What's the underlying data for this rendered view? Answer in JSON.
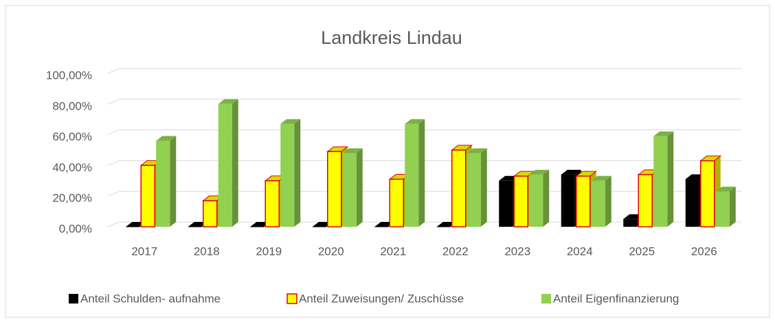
{
  "chart_data": {
    "type": "bar",
    "title": "Landkreis Lindau",
    "categories": [
      "2017",
      "2018",
      "2019",
      "2020",
      "2021",
      "2022",
      "2023",
      "2024",
      "2025",
      "2026"
    ],
    "series": [
      {
        "name": "Anteil Schulden- aufnahme",
        "color": "#000000",
        "values": [
          0,
          0,
          0,
          0,
          0,
          0,
          30,
          34,
          5,
          31
        ]
      },
      {
        "name": "Anteil Zuweisungen/ Zuschüsse",
        "color": "#ffff00",
        "edgecolor": "#e00000",
        "values": [
          40,
          17,
          30,
          49,
          31,
          50,
          33,
          33,
          34,
          43
        ]
      },
      {
        "name": "Anteil Eigenfinanzierung",
        "color": "#92d050",
        "values": [
          56,
          80,
          67,
          48,
          67,
          48,
          34,
          30,
          59,
          23
        ]
      }
    ],
    "ylim": [
      0,
      100
    ],
    "yticks": [
      {
        "value": 0,
        "label": "0,00%"
      },
      {
        "value": 20,
        "label": "20,00%"
      },
      {
        "value": 40,
        "label": "40,00%"
      },
      {
        "value": 60,
        "label": "60,00%"
      },
      {
        "value": 80,
        "label": "80,00%"
      },
      {
        "value": 100,
        "label": "100,00%"
      }
    ],
    "grid": true,
    "legend": "bottom"
  }
}
